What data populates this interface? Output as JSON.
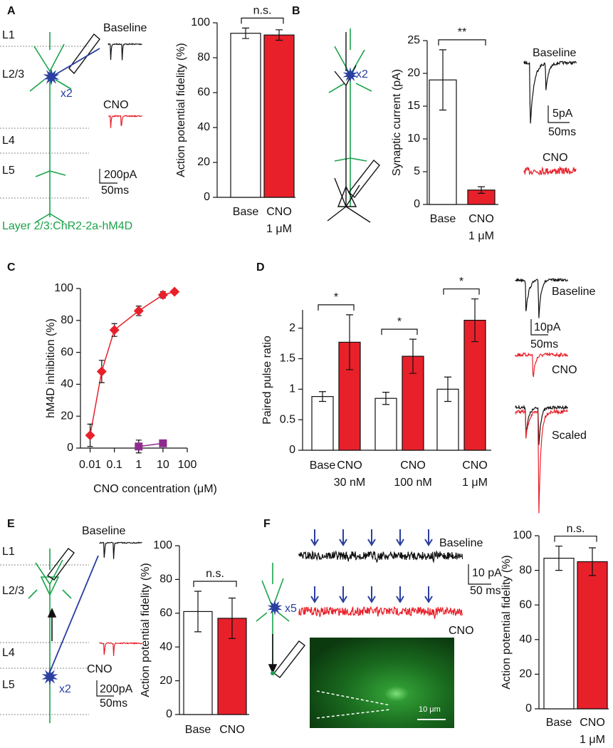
{
  "chart_data": [
    {
      "panel": "A",
      "type": "bar",
      "ylabel": "Action potential fidelity (%)",
      "categories": [
        "Base",
        "CNO"
      ],
      "conditions": [
        null,
        "1 μM"
      ],
      "values": [
        94,
        93
      ],
      "errors": [
        3,
        3
      ],
      "colors": [
        "#ffffff",
        "#e8202a"
      ],
      "ylim": [
        0,
        100
      ],
      "yticks": [
        0,
        20,
        40,
        60,
        80,
        100
      ],
      "comparisons": [
        "n.s."
      ],
      "notes": [
        "L1",
        "L2/3",
        "L4",
        "L5",
        "x2",
        "Baseline",
        "CNO",
        "200pA",
        "50ms",
        "Layer 2/3:ChR2-2a-hM4D"
      ]
    },
    {
      "panel": "B",
      "type": "bar",
      "ylabel": "Synaptic current (pA)",
      "categories": [
        "Base",
        "CNO"
      ],
      "conditions": [
        null,
        "1 μM"
      ],
      "values": [
        19,
        2.2
      ],
      "errors": [
        4.6,
        0.5
      ],
      "colors": [
        "#ffffff",
        "#e8202a"
      ],
      "ylim": [
        0,
        25
      ],
      "yticks": [
        0,
        5,
        10,
        15,
        20,
        25
      ],
      "comparisons": [
        "**"
      ],
      "notes": [
        "x2",
        "Baseline",
        "5pA",
        "50ms",
        "CNO"
      ]
    },
    {
      "panel": "C",
      "type": "line",
      "xlabel": "CNO concentration (μM)",
      "ylabel": "hM4D inhibition (%)",
      "xscale": "log",
      "xlim": [
        0.004,
        100
      ],
      "xticks": [
        0.01,
        0.1,
        1,
        10,
        100
      ],
      "ylim": [
        0,
        100
      ],
      "yticks": [
        0,
        20,
        40,
        60,
        80,
        100
      ],
      "series": [
        {
          "color": "#e8202a",
          "marker": "diamond",
          "x": [
            0.01,
            0.03,
            0.1,
            1,
            10,
            30
          ],
          "values": [
            8,
            48,
            74,
            86,
            96,
            98
          ],
          "errors": [
            7,
            7,
            4,
            3,
            2,
            1
          ]
        },
        {
          "color": "#8e2c8e",
          "marker": "square",
          "x": [
            1,
            10
          ],
          "values": [
            1,
            3
          ],
          "errors": [
            4,
            2
          ]
        }
      ],
      "notes": []
    },
    {
      "panel": "D",
      "type": "bar",
      "ylabel": "Paired pulse ratio",
      "categories": [
        "Base",
        "CNO",
        null,
        "CNO",
        null,
        "CNO"
      ],
      "conditions": [
        null,
        "30 nM",
        null,
        "100 nM",
        null,
        "1 μM"
      ],
      "values": [
        0.88,
        1.77,
        0.85,
        1.54,
        1.0,
        2.13
      ],
      "errors": [
        0.08,
        0.45,
        0.1,
        0.28,
        0.2,
        0.35
      ],
      "colors": [
        "#ffffff",
        "#e8202a",
        "#ffffff",
        "#e8202a",
        "#ffffff",
        "#e8202a"
      ],
      "ylim": [
        0,
        2.3
      ],
      "yticks": [
        0,
        0.5,
        1,
        1.5,
        2
      ],
      "comparisons": [
        "*",
        "*",
        "*"
      ],
      "notes": [
        "Baseline",
        "10pA",
        "50ms",
        "CNO",
        "Scaled"
      ]
    },
    {
      "panel": "E",
      "type": "bar",
      "ylabel": "Action potential fidelity (%)",
      "categories": [
        "Base",
        "CNO"
      ],
      "values": [
        61,
        57
      ],
      "errors": [
        12,
        12
      ],
      "colors": [
        "#ffffff",
        "#e8202a"
      ],
      "ylim": [
        0,
        100
      ],
      "yticks": [
        0,
        20,
        40,
        60,
        80,
        100
      ],
      "comparisons": [
        "n.s."
      ],
      "notes": [
        "L1",
        "L2/3",
        "L4",
        "L5",
        "x2",
        "Baseline",
        "CNO",
        "200pA",
        "50ms"
      ]
    },
    {
      "panel": "F",
      "type": "bar",
      "ylabel": "Action potential fidelity (%)",
      "categories": [
        "Base",
        "CNO"
      ],
      "conditions": [
        null,
        "1 μM"
      ],
      "values": [
        87,
        85
      ],
      "errors": [
        7,
        8
      ],
      "colors": [
        "#ffffff",
        "#e8202a"
      ],
      "ylim": [
        0,
        100
      ],
      "yticks": [
        0,
        20,
        40,
        60,
        80,
        100
      ],
      "comparisons": [
        "n.s."
      ],
      "notes": [
        "x5",
        "Baseline",
        "10 pA",
        "50 ms",
        "CNO",
        "10 μm"
      ]
    }
  ]
}
